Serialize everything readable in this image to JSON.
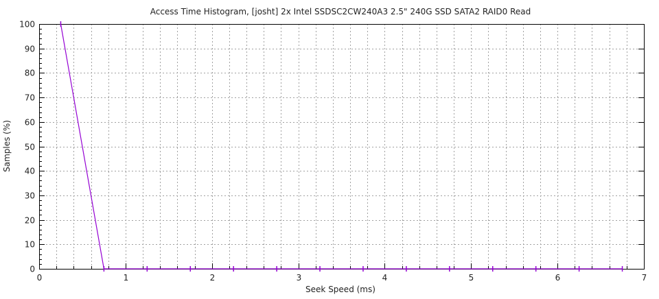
{
  "chart_data": {
    "type": "line",
    "title": "Access Time Histogram, [josht] 2x Intel SSDSC2CW240A3 2.5\" 240G SSD SATA2 RAID0 Read",
    "xlabel": "Seek Speed (ms)",
    "ylabel": "Samples (%)",
    "xlim": [
      0,
      7
    ],
    "ylim": [
      0,
      100
    ],
    "xticks": [
      0,
      1,
      2,
      3,
      4,
      5,
      6,
      7
    ],
    "yticks": [
      0,
      10,
      20,
      30,
      40,
      50,
      60,
      70,
      80,
      90,
      100
    ],
    "x_minor_step": 0.2,
    "y_minor_step": 2,
    "grid": true,
    "series": [
      {
        "color": "#9400d3",
        "x": [
          0.25,
          0.75,
          1.25,
          1.75,
          2.25,
          2.75,
          3.25,
          3.75,
          4.25,
          4.75,
          5.25,
          5.75,
          6.25,
          6.75
        ],
        "values": [
          100,
          0,
          0,
          0,
          0,
          0,
          0,
          0,
          0,
          0,
          0,
          0,
          0,
          0
        ]
      }
    ]
  }
}
